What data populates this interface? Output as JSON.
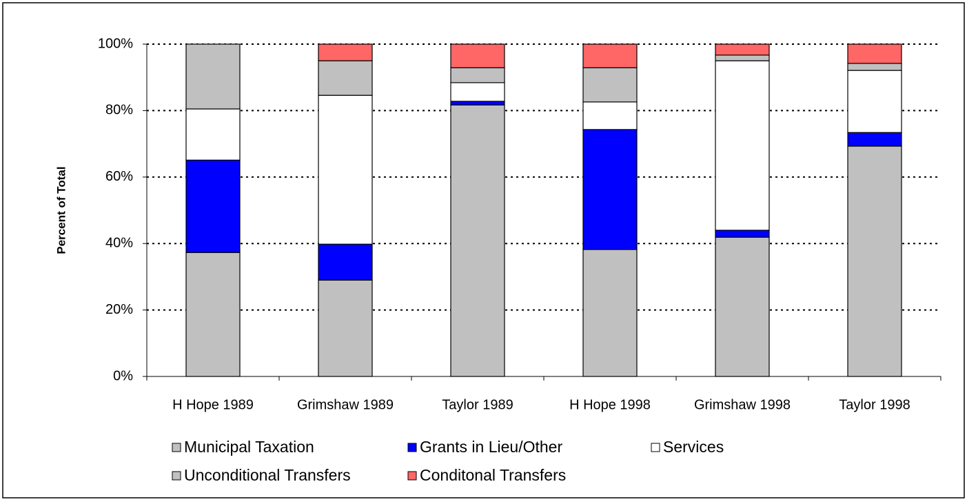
{
  "chart_data": {
    "type": "stacked_bar",
    "y_label": "Percent of Total",
    "categories": [
      "H Hope 1989",
      "Grimshaw  1989",
      "Taylor 1989",
      "H Hope 1998",
      "Grimshaw  1998",
      "Taylor 1998"
    ],
    "series": [
      {
        "name": "Municipal Taxation",
        "color": "#c0c0c0",
        "values": [
          37.3,
          29.0,
          81.7,
          38.2,
          41.9,
          69.3
        ]
      },
      {
        "name": "Grants in Lieu/Other",
        "color": "#0000ff",
        "values": [
          27.8,
          10.8,
          1.1,
          36.1,
          2.1,
          4.1
        ]
      },
      {
        "name": "Services",
        "color": "#ffffff",
        "values": [
          15.4,
          44.8,
          5.6,
          8.3,
          51.0,
          18.7
        ]
      },
      {
        "name": "Unconditional Transfers",
        "color": "#c0c0c0",
        "values": [
          19.5,
          10.4,
          4.5,
          10.3,
          1.7,
          2.1
        ]
      },
      {
        "name": "Conditonal Transfers",
        "color": "#ff6666",
        "values": [
          0,
          5.0,
          7.1,
          7.1,
          3.3,
          5.8
        ]
      }
    ],
    "ylim": [
      0,
      100
    ],
    "yticks": [
      {
        "value": 0,
        "label": "0%"
      },
      {
        "value": 20,
        "label": "20%"
      },
      {
        "value": 40,
        "label": "40%"
      },
      {
        "value": 60,
        "label": "60%"
      },
      {
        "value": 80,
        "label": "80%"
      },
      {
        "value": 100,
        "label": "100%"
      }
    ],
    "grid": true
  }
}
